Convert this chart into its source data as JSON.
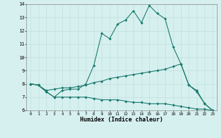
{
  "xlabel": "Humidex (Indice chaleur)",
  "background_color": "#d6f0ef",
  "grid_color": "#c0e0de",
  "line_color": "#1a7a6e",
  "xlim": [
    -0.5,
    23.5
  ],
  "ylim": [
    6,
    14
  ],
  "xticks": [
    0,
    1,
    2,
    3,
    4,
    5,
    6,
    7,
    8,
    9,
    10,
    11,
    12,
    13,
    14,
    15,
    16,
    17,
    18,
    19,
    20,
    21,
    22,
    23
  ],
  "yticks": [
    6,
    7,
    8,
    9,
    10,
    11,
    12,
    13,
    14
  ],
  "line1_x": [
    0,
    1,
    2,
    3,
    4,
    5,
    6,
    7,
    8,
    9,
    10,
    11,
    12,
    13,
    14,
    15,
    16,
    17,
    18,
    19,
    20,
    21,
    22,
    23
  ],
  "line1_y": [
    8.0,
    7.9,
    7.4,
    7.0,
    7.5,
    7.6,
    7.6,
    8.0,
    9.4,
    11.8,
    11.4,
    12.5,
    12.8,
    13.5,
    12.6,
    13.9,
    13.3,
    12.9,
    10.8,
    9.5,
    7.9,
    7.5,
    6.5,
    6.0
  ],
  "line2_x": [
    0,
    1,
    2,
    3,
    4,
    5,
    6,
    7,
    8,
    9,
    10,
    11,
    12,
    13,
    14,
    15,
    16,
    17,
    18,
    19,
    20,
    21,
    22,
    23
  ],
  "line2_y": [
    8.0,
    7.9,
    7.5,
    7.6,
    7.7,
    7.7,
    7.8,
    7.9,
    8.1,
    8.2,
    8.4,
    8.5,
    8.6,
    8.7,
    8.8,
    8.9,
    9.0,
    9.1,
    9.3,
    9.5,
    7.9,
    7.4,
    6.5,
    6.0
  ],
  "line3_x": [
    0,
    1,
    2,
    3,
    4,
    5,
    6,
    7,
    8,
    9,
    10,
    11,
    12,
    13,
    14,
    15,
    16,
    17,
    18,
    19,
    20,
    21,
    22,
    23
  ],
  "line3_y": [
    8.0,
    7.9,
    7.4,
    7.0,
    7.0,
    7.0,
    7.0,
    7.0,
    6.9,
    6.8,
    6.8,
    6.8,
    6.7,
    6.6,
    6.6,
    6.5,
    6.5,
    6.5,
    6.4,
    6.3,
    6.2,
    6.1,
    6.1,
    6.0
  ]
}
